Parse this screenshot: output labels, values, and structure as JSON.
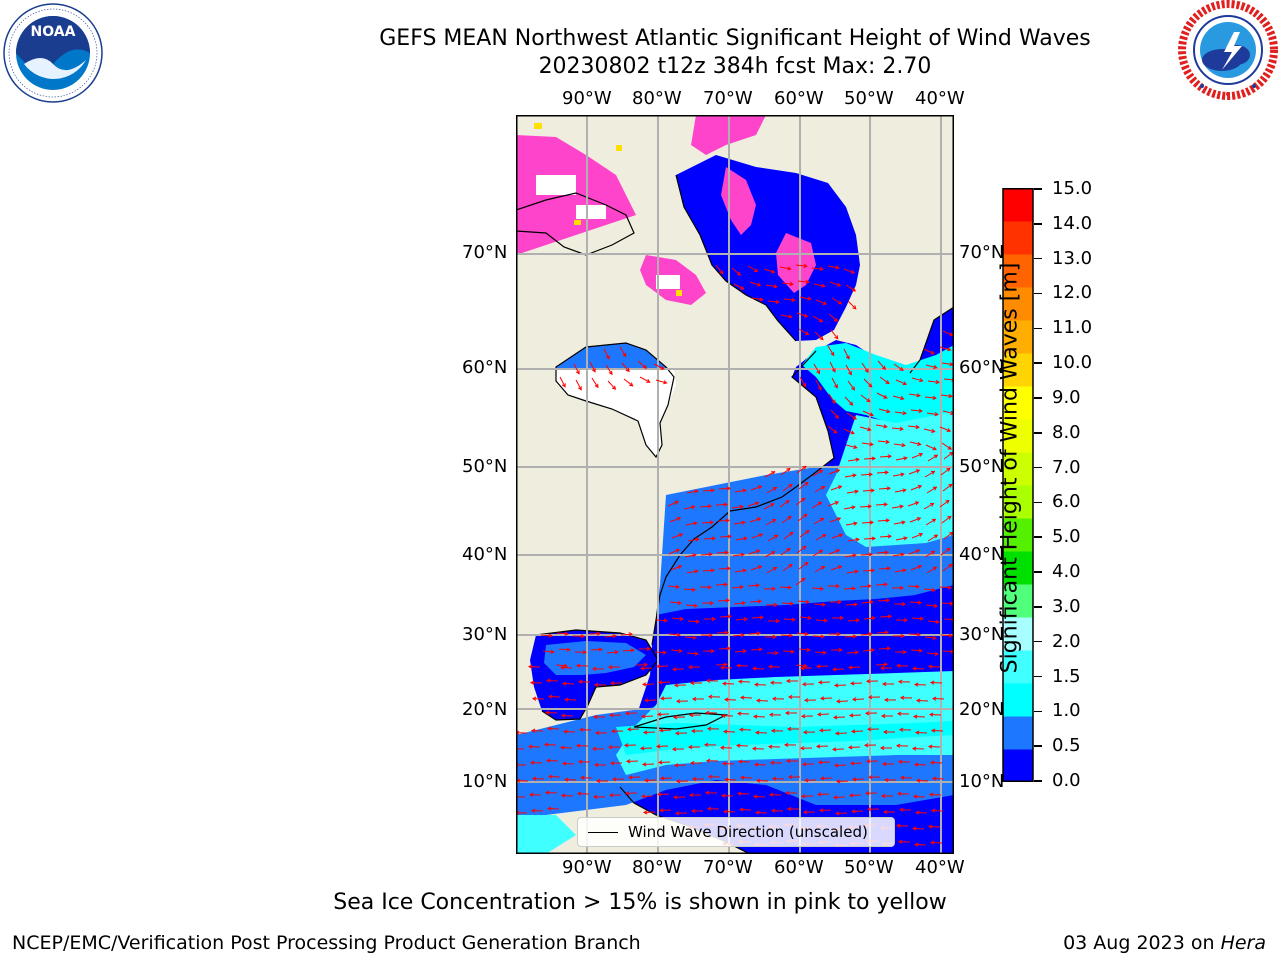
{
  "title": {
    "line1": "GEFS MEAN Northwest Atlantic Significant Height of Wind Waves",
    "line2": "20230802 t12z 384h fcst   Max: 2.70"
  },
  "logos": {
    "noaa": {
      "icon": "noaa-logo-icon",
      "text": "NOAA",
      "ring_text": "NATIONAL OCEANIC AND ATMOSPHERIC ADMINISTRATION · U.S. DEPARTMENT OF COMMERCE"
    },
    "nws": {
      "icon": "nws-logo-icon",
      "ring_text": "NATIONAL WEATHER SERVICE"
    }
  },
  "map": {
    "lon_labels": [
      "90°W",
      "80°W",
      "70°W",
      "60°W",
      "50°W",
      "40°W"
    ],
    "lat_labels": [
      "70°N",
      "60°N",
      "50°N",
      "40°N",
      "30°N",
      "20°N",
      "10°N"
    ],
    "legend": "Wind Wave Direction (unscaled)",
    "colors": {
      "land": "#efedde",
      "grid": "#b0b0b0",
      "arrow": "#ff0000",
      "ice": "#ff44cc",
      "missing": "#ffffff"
    }
  },
  "colorbar": {
    "label": "Significant Height of Wind Waves [m]",
    "ticks": [
      "15.0",
      "14.0",
      "13.0",
      "12.0",
      "11.0",
      "10.0",
      "9.0",
      "8.0",
      "7.0",
      "6.0",
      "5.0",
      "4.0",
      "3.0",
      "2.0",
      "1.5",
      "1.0",
      "0.5",
      "0.0"
    ],
    "bin_colors": [
      "#0000ff",
      "#1e78ff",
      "#00ffff",
      "#40ffff",
      "#a8ffff",
      "#50ff7a",
      "#00e000",
      "#55f000",
      "#aaff00",
      "#ccff00",
      "#eeff00",
      "#ffff00",
      "#ffd400",
      "#ffae00",
      "#ff8c00",
      "#ff6400",
      "#ff3200",
      "#ff0000"
    ]
  },
  "footnote": "Sea Ice Concentration > 15% is shown in pink to yellow",
  "footer": {
    "left": "NCEP/EMC/Verification Post Processing Product Generation Branch",
    "right_prefix": "03 Aug 2023 on ",
    "right_host": "Hera"
  }
}
